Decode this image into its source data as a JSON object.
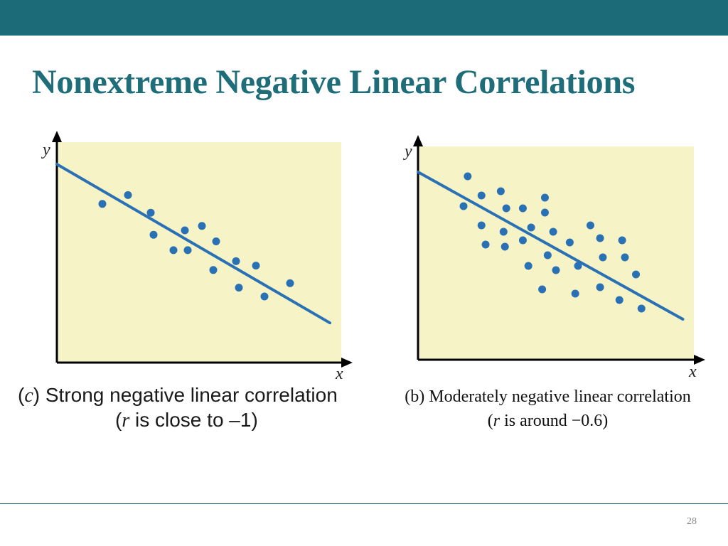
{
  "slide": {
    "title": "Nonextreme Negative Linear Correlations",
    "page_number": "28",
    "accent_color": "#1b6b78",
    "title_color": "#1e6d79"
  },
  "chart_data": [
    {
      "type": "scatter",
      "id": "c",
      "xlabel": "x",
      "ylabel": "y",
      "xlim": [
        0,
        10
      ],
      "ylim": [
        0,
        10
      ],
      "grid": false,
      "plot_background": "#f6f3c6",
      "point_color": "#2a70b5",
      "line_color": "#2a70b5",
      "caption": {
        "letter": "c",
        "line1": " Strong negative linear correlation",
        "line2_pre": "",
        "r_symbol": "r",
        "line2_post": " is close to –1"
      },
      "points": [
        {
          "x": 1.6,
          "y": 7.2
        },
        {
          "x": 2.5,
          "y": 7.6
        },
        {
          "x": 3.3,
          "y": 6.8
        },
        {
          "x": 3.4,
          "y": 5.8
        },
        {
          "x": 4.1,
          "y": 5.1
        },
        {
          "x": 4.5,
          "y": 6.0
        },
        {
          "x": 4.6,
          "y": 5.1
        },
        {
          "x": 5.1,
          "y": 6.2
        },
        {
          "x": 5.6,
          "y": 5.5
        },
        {
          "x": 5.5,
          "y": 4.2
        },
        {
          "x": 6.3,
          "y": 4.6
        },
        {
          "x": 6.4,
          "y": 3.4
        },
        {
          "x": 7.0,
          "y": 4.4
        },
        {
          "x": 7.3,
          "y": 3.0
        },
        {
          "x": 8.2,
          "y": 3.6
        }
      ],
      "fit_line": {
        "x": [
          0,
          9.6
        ],
        "y": [
          9.0,
          1.8
        ]
      }
    },
    {
      "type": "scatter",
      "id": "b",
      "xlabel": "x",
      "ylabel": "y",
      "xlim": [
        0,
        10
      ],
      "ylim": [
        0,
        10
      ],
      "grid": false,
      "plot_background": "#f6f3c6",
      "point_color": "#2a70b5",
      "line_color": "#2a70b5",
      "caption": {
        "line1": "(b) Moderately negative linear correlation",
        "line2_pre": "(",
        "r_symbol": "r",
        "line2_post": " is around −0.6)"
      },
      "points": [
        {
          "x": 1.8,
          "y": 8.6
        },
        {
          "x": 1.65,
          "y": 7.2
        },
        {
          "x": 2.3,
          "y": 7.7
        },
        {
          "x": 3.0,
          "y": 7.9
        },
        {
          "x": 3.2,
          "y": 7.1
        },
        {
          "x": 2.3,
          "y": 6.3
        },
        {
          "x": 2.45,
          "y": 5.4
        },
        {
          "x": 3.1,
          "y": 6.0
        },
        {
          "x": 3.15,
          "y": 5.3
        },
        {
          "x": 3.8,
          "y": 7.1
        },
        {
          "x": 3.8,
          "y": 5.6
        },
        {
          "x": 4.1,
          "y": 6.2
        },
        {
          "x": 4.0,
          "y": 4.4
        },
        {
          "x": 4.6,
          "y": 7.6
        },
        {
          "x": 4.6,
          "y": 6.9
        },
        {
          "x": 4.9,
          "y": 6.0
        },
        {
          "x": 4.7,
          "y": 4.9
        },
        {
          "x": 5.0,
          "y": 4.2
        },
        {
          "x": 4.5,
          "y": 3.3
        },
        {
          "x": 5.5,
          "y": 5.5
        },
        {
          "x": 5.8,
          "y": 4.4
        },
        {
          "x": 6.25,
          "y": 6.3
        },
        {
          "x": 5.7,
          "y": 3.1
        },
        {
          "x": 6.6,
          "y": 5.7
        },
        {
          "x": 6.7,
          "y": 4.8
        },
        {
          "x": 6.6,
          "y": 3.4
        },
        {
          "x": 7.4,
          "y": 5.6
        },
        {
          "x": 7.5,
          "y": 4.8
        },
        {
          "x": 7.3,
          "y": 2.8
        },
        {
          "x": 7.9,
          "y": 4.0
        },
        {
          "x": 8.1,
          "y": 2.4
        }
      ],
      "fit_line": {
        "x": [
          0,
          9.6
        ],
        "y": [
          8.8,
          1.9
        ]
      }
    }
  ]
}
